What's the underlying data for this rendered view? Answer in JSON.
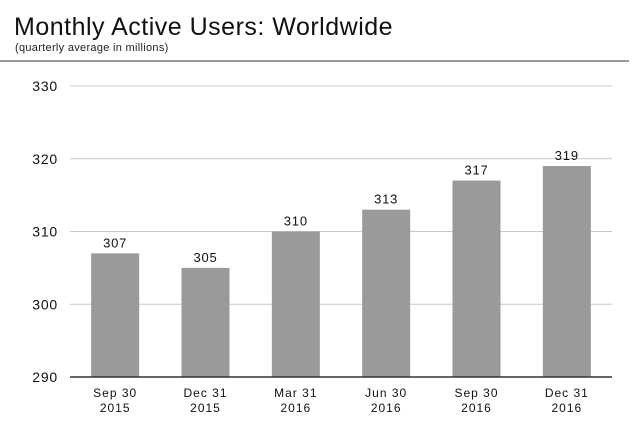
{
  "colors": {
    "bar": "#9a9a9a",
    "gridline": "#c8c8c8",
    "axis": "#333333",
    "rule": "#9a9a9a"
  },
  "chart_data": {
    "type": "bar",
    "title": "Monthly Active Users: Worldwide",
    "subtitle": "(quarterly average in millions)",
    "xlabel": "",
    "ylabel": "",
    "categories": [
      [
        "Sep 30",
        "2015"
      ],
      [
        "Dec 31",
        "2015"
      ],
      [
        "Mar 31",
        "2016"
      ],
      [
        "Jun 30",
        "2016"
      ],
      [
        "Sep 30",
        "2016"
      ],
      [
        "Dec 31",
        "2016"
      ]
    ],
    "values": [
      307,
      305,
      310,
      313,
      317,
      319
    ],
    "data_labels": [
      "307",
      "305",
      "310",
      "313",
      "317",
      "319"
    ],
    "ylim": [
      290,
      330
    ],
    "yticks": [
      290,
      300,
      310,
      320,
      330
    ],
    "grid": true,
    "legend": "none"
  }
}
